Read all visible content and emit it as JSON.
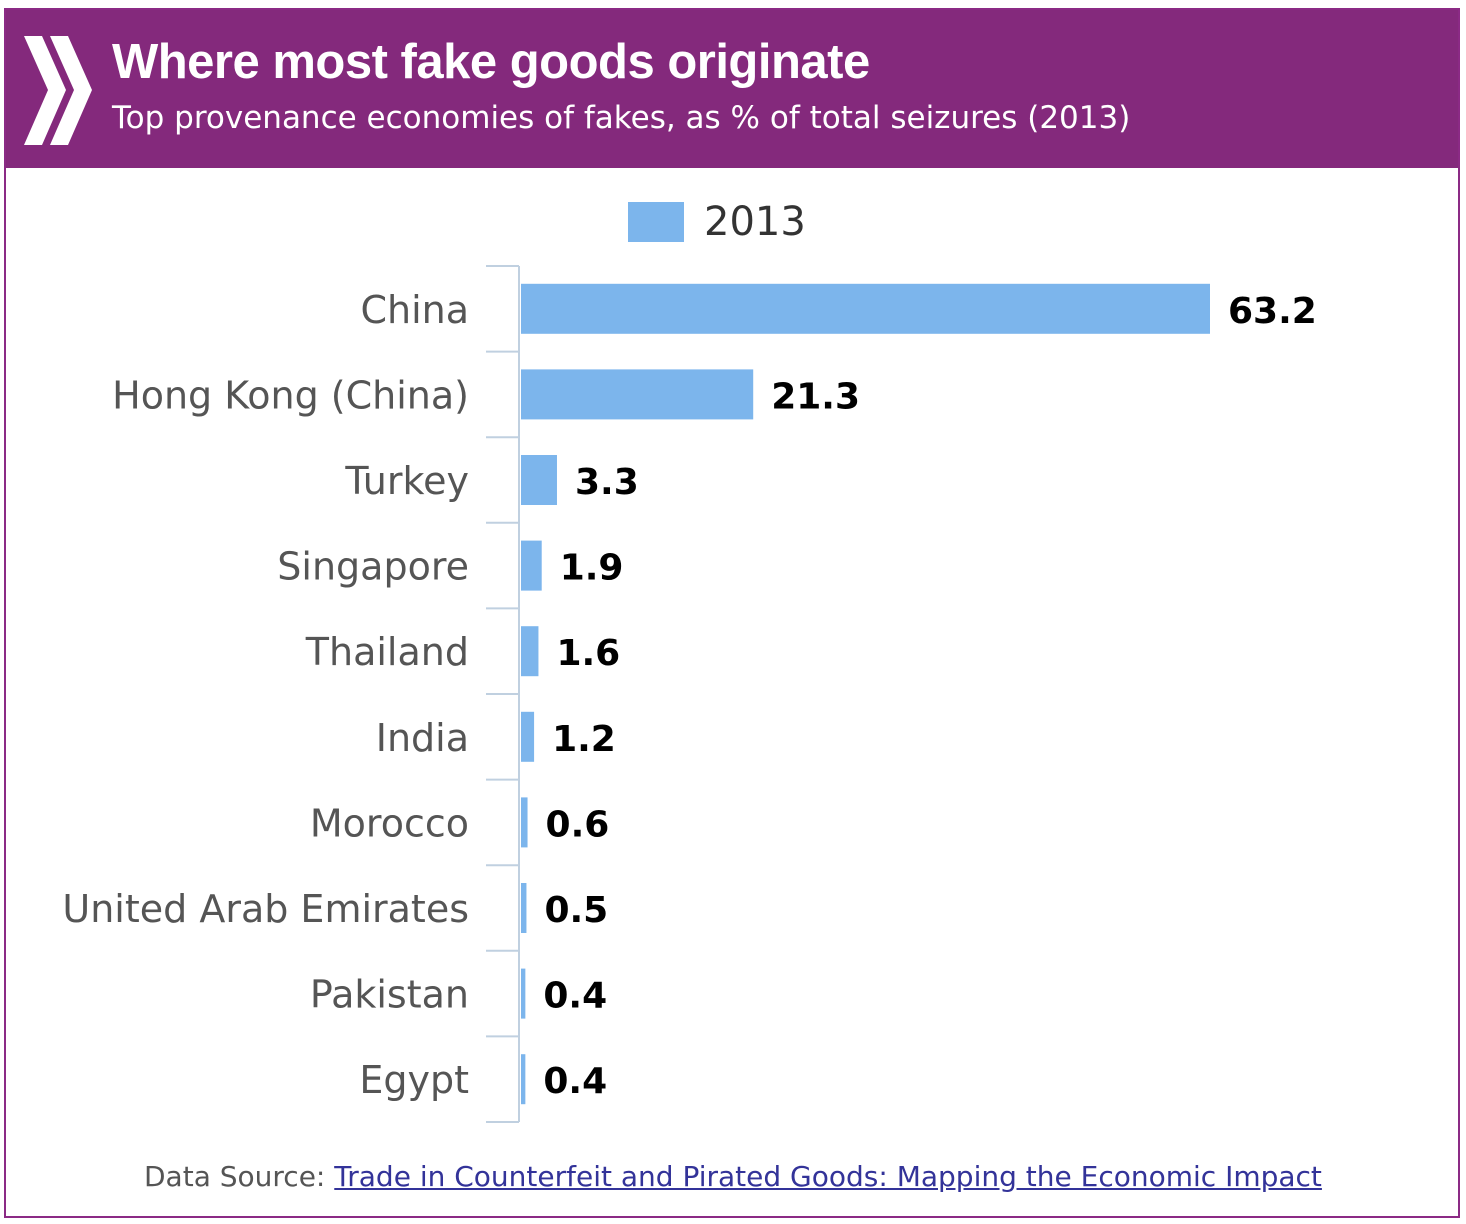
{
  "header": {
    "title": "Where most fake goods originate",
    "subtitle": "Top provenance economies of fakes, as % of total seizures (2013)"
  },
  "legend": {
    "label": "2013",
    "color": "#7cb5ec"
  },
  "footer": {
    "prefix": "Data Source: ",
    "link_text": "Trade in Counterfeit and Pirated Goods: Mapping the Economic Impact"
  },
  "chart_data": {
    "type": "bar",
    "orientation": "horizontal",
    "title": "Where most fake goods originate",
    "subtitle": "Top provenance economies of fakes, as % of total seizures (2013)",
    "categories": [
      "China",
      "Hong Kong (China)",
      "Turkey",
      "Singapore",
      "Thailand",
      "India",
      "Morocco",
      "United Arab Emirates",
      "Pakistan",
      "Egypt"
    ],
    "series": [
      {
        "name": "2013",
        "values": [
          63.2,
          21.3,
          3.3,
          1.9,
          1.6,
          1.2,
          0.6,
          0.5,
          0.4,
          0.4
        ],
        "color": "#7cb5ec"
      }
    ],
    "data_labels": [
      "63.2",
      "21.3",
      "3.3",
      "1.9",
      "1.6",
      "1.2",
      "0.6",
      "0.5",
      "0.4",
      "0.4"
    ],
    "xlabel": "",
    "ylabel": "",
    "xlim": [
      0,
      63.2
    ],
    "grid": false,
    "legend_position": "top-center"
  }
}
